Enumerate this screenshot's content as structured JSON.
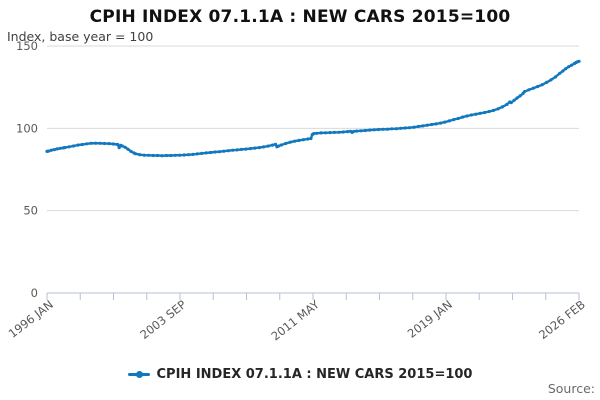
{
  "title": "CPIH INDEX 07.1.1A : NEW CARS 2015=100",
  "subtitle": "Index, base year = 100",
  "source_label": "Source:",
  "legend": {
    "label": "CPIH INDEX 07.1.1A : NEW CARS 2015=100"
  },
  "colors": {
    "line": "#1178be",
    "grid": "#d9d9d9",
    "axis": "#b3c2d8",
    "tick_text": "#595959",
    "title_text": "#111111",
    "subtitle_text": "#3f3f3f",
    "source_text": "#6b6b6b"
  },
  "chart_data": {
    "type": "line",
    "title": "CPIH INDEX 07.1.1A : NEW CARS 2015=100",
    "ylabel": "Index, base year = 100",
    "xlabel": "",
    "ylim": [
      0,
      150
    ],
    "yticks": [
      0,
      50,
      100,
      150
    ],
    "grid": "horizontal",
    "legend_position": "bottom",
    "x_range_years": [
      1996.0,
      2026.083
    ],
    "xtick_major_labels": [
      "1996 JAN",
      "2003 SEP",
      "2011 MAY",
      "2019 JAN",
      "2026 FEB"
    ],
    "minor_ticks_between_majors": 3,
    "series": [
      {
        "name": "CPIH INDEX 07.1.1A : NEW CARS 2015=100",
        "color": "#1178be",
        "points": [
          [
            1996.0,
            86.0
          ],
          [
            1996.083,
            86.2
          ],
          [
            1996.25,
            86.7
          ],
          [
            1996.42,
            87.1
          ],
          [
            1996.58,
            87.5
          ],
          [
            1996.75,
            87.9
          ],
          [
            1996.92,
            88.1
          ],
          [
            1997.0,
            88.3
          ],
          [
            1997.25,
            88.8
          ],
          [
            1997.5,
            89.3
          ],
          [
            1997.75,
            89.8
          ],
          [
            1998.0,
            90.2
          ],
          [
            1998.25,
            90.6
          ],
          [
            1998.5,
            90.9
          ],
          [
            1998.75,
            91.0
          ],
          [
            1999.0,
            90.9
          ],
          [
            1999.25,
            90.8
          ],
          [
            1999.5,
            90.7
          ],
          [
            1999.75,
            90.5
          ],
          [
            2000.0,
            90.2
          ],
          [
            2000.083,
            88.3
          ],
          [
            2000.17,
            89.7
          ],
          [
            2000.25,
            89.3
          ],
          [
            2000.42,
            88.5
          ],
          [
            2000.58,
            87.3
          ],
          [
            2000.75,
            86.0
          ],
          [
            2000.92,
            85.0
          ],
          [
            2001.0,
            84.6
          ],
          [
            2001.25,
            84.0
          ],
          [
            2001.5,
            83.7
          ],
          [
            2001.75,
            83.6
          ],
          [
            2002.0,
            83.5
          ],
          [
            2002.25,
            83.5
          ],
          [
            2002.5,
            83.4
          ],
          [
            2002.75,
            83.5
          ],
          [
            2003.0,
            83.5
          ],
          [
            2003.25,
            83.6
          ],
          [
            2003.5,
            83.7
          ],
          [
            2003.75,
            83.8
          ],
          [
            2004.0,
            84.0
          ],
          [
            2004.25,
            84.2
          ],
          [
            2004.5,
            84.5
          ],
          [
            2004.75,
            84.8
          ],
          [
            2005.0,
            85.1
          ],
          [
            2005.25,
            85.3
          ],
          [
            2005.5,
            85.6
          ],
          [
            2005.75,
            85.8
          ],
          [
            2006.0,
            86.1
          ],
          [
            2006.25,
            86.4
          ],
          [
            2006.5,
            86.7
          ],
          [
            2006.75,
            86.9
          ],
          [
            2007.0,
            87.2
          ],
          [
            2007.25,
            87.4
          ],
          [
            2007.5,
            87.7
          ],
          [
            2007.75,
            88.0
          ],
          [
            2008.0,
            88.3
          ],
          [
            2008.25,
            88.7
          ],
          [
            2008.5,
            89.2
          ],
          [
            2008.75,
            89.8
          ],
          [
            2008.92,
            90.3
          ],
          [
            2009.0,
            88.8
          ],
          [
            2009.083,
            89.2
          ],
          [
            2009.25,
            89.9
          ],
          [
            2009.5,
            90.8
          ],
          [
            2009.75,
            91.6
          ],
          [
            2010.0,
            92.2
          ],
          [
            2010.25,
            92.7
          ],
          [
            2010.5,
            93.1
          ],
          [
            2010.75,
            93.5
          ],
          [
            2010.92,
            93.8
          ],
          [
            2011.0,
            96.2
          ],
          [
            2011.083,
            96.8
          ],
          [
            2011.25,
            97.0
          ],
          [
            2011.5,
            97.2
          ],
          [
            2011.75,
            97.3
          ],
          [
            2012.0,
            97.4
          ],
          [
            2012.25,
            97.5
          ],
          [
            2012.5,
            97.6
          ],
          [
            2012.75,
            97.8
          ],
          [
            2013.0,
            98.0
          ],
          [
            2013.17,
            98.2
          ],
          [
            2013.25,
            97.5
          ],
          [
            2013.33,
            98.1
          ],
          [
            2013.5,
            98.3
          ],
          [
            2013.75,
            98.5
          ],
          [
            2014.0,
            98.7
          ],
          [
            2014.25,
            98.9
          ],
          [
            2014.5,
            99.1
          ],
          [
            2014.75,
            99.3
          ],
          [
            2015.0,
            99.4
          ],
          [
            2015.25,
            99.5
          ],
          [
            2015.5,
            99.7
          ],
          [
            2015.75,
            99.8
          ],
          [
            2016.0,
            100.0
          ],
          [
            2016.25,
            100.2
          ],
          [
            2016.5,
            100.4
          ],
          [
            2016.75,
            100.7
          ],
          [
            2017.0,
            101.1
          ],
          [
            2017.25,
            101.5
          ],
          [
            2017.5,
            101.9
          ],
          [
            2017.75,
            102.3
          ],
          [
            2018.0,
            102.7
          ],
          [
            2018.25,
            103.2
          ],
          [
            2018.5,
            103.8
          ],
          [
            2018.75,
            104.5
          ],
          [
            2019.0,
            105.3
          ],
          [
            2019.25,
            106.0
          ],
          [
            2019.5,
            106.8
          ],
          [
            2019.75,
            107.5
          ],
          [
            2020.0,
            108.1
          ],
          [
            2020.25,
            108.6
          ],
          [
            2020.5,
            109.1
          ],
          [
            2020.75,
            109.6
          ],
          [
            2021.0,
            110.2
          ],
          [
            2021.25,
            110.9
          ],
          [
            2021.5,
            111.8
          ],
          [
            2021.75,
            113.0
          ],
          [
            2022.0,
            114.5
          ],
          [
            2022.17,
            116.0
          ],
          [
            2022.25,
            115.6
          ],
          [
            2022.42,
            117.0
          ],
          [
            2022.58,
            118.4
          ],
          [
            2022.75,
            119.7
          ],
          [
            2022.92,
            121.2
          ],
          [
            2023.0,
            122.3
          ],
          [
            2023.25,
            123.4
          ],
          [
            2023.5,
            124.4
          ],
          [
            2023.75,
            125.4
          ],
          [
            2024.0,
            126.5
          ],
          [
            2024.25,
            127.9
          ],
          [
            2024.5,
            129.4
          ],
          [
            2024.75,
            131.2
          ],
          [
            2025.0,
            133.4
          ],
          [
            2025.17,
            134.8
          ],
          [
            2025.33,
            136.2
          ],
          [
            2025.5,
            137.4
          ],
          [
            2025.67,
            138.4
          ],
          [
            2025.83,
            139.4
          ],
          [
            2025.92,
            140.0
          ],
          [
            2026.0,
            140.4
          ],
          [
            2026.083,
            140.7
          ]
        ]
      }
    ]
  }
}
